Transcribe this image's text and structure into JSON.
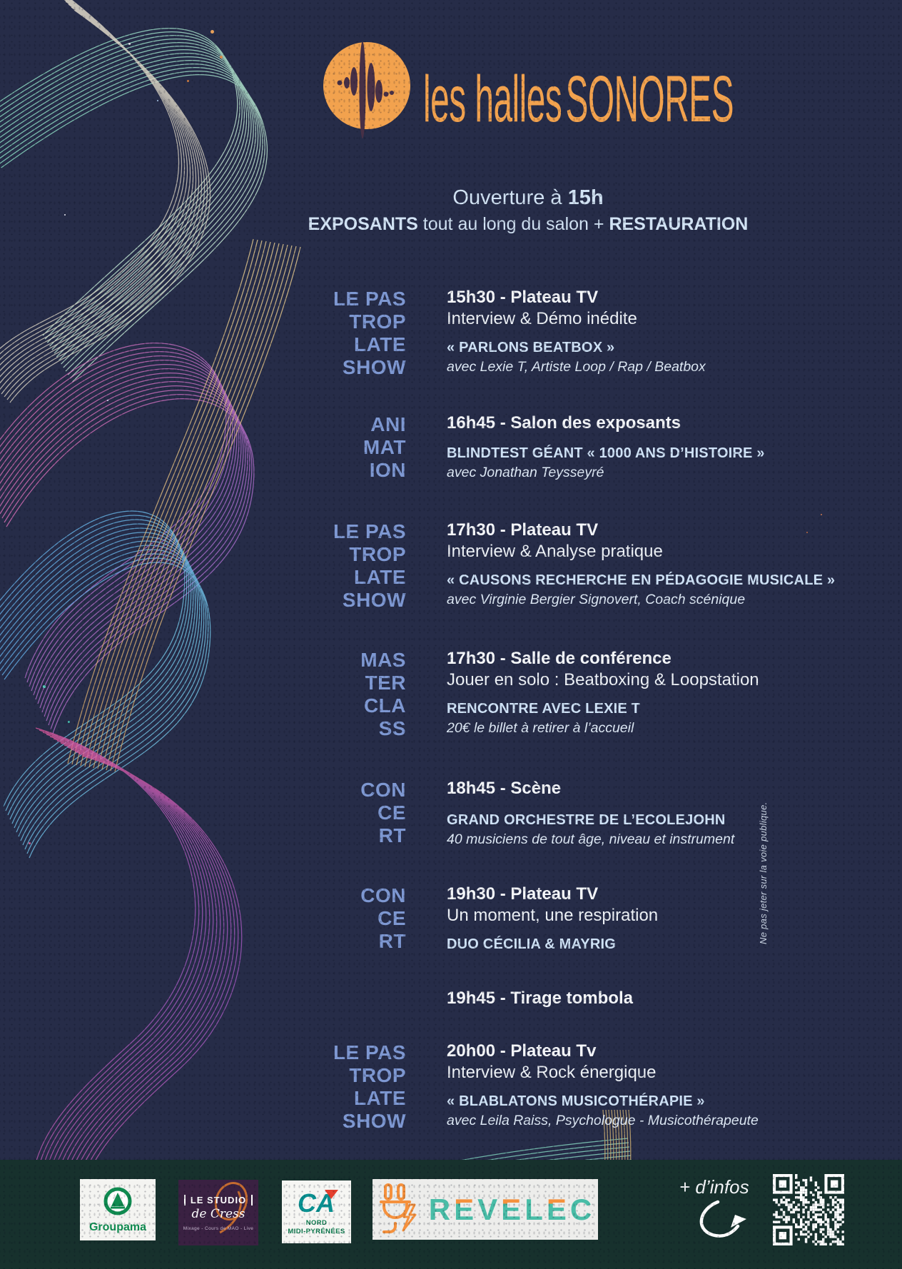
{
  "brand": {
    "icon": "soundwave-circle-icon",
    "name_lower": "les halles",
    "name_upper": "SONORES"
  },
  "header": {
    "opening_prefix": "Ouverture à ",
    "opening_time": "15h",
    "sub_bold1": "EXPOSANTS",
    "sub_mid": " tout au long du salon + ",
    "sub_bold2": "RESTAURATION"
  },
  "schedule": {
    "events": [
      {
        "category": [
          "LE PAS",
          "TROP",
          "LATE",
          "SHOW"
        ],
        "title": "15h30 - Plateau TV",
        "desc": "Interview & Démo inédite",
        "subtitle": "« PARLONS BEATBOX »",
        "credit": "avec Lexie T, Artiste Loop / Rap / Beatbox"
      },
      {
        "category": [
          "ANI",
          "MAT",
          "ION"
        ],
        "title": "16h45 - Salon des exposants",
        "subtitle": "BLINDTEST GÉANT « 1000 ANS D’HISTOIRE »",
        "credit": "avec Jonathan Teysseyré"
      },
      {
        "category": [
          "LE PAS",
          "TROP",
          "LATE",
          "SHOW"
        ],
        "title": "17h30 - Plateau TV",
        "desc": "Interview & Analyse pratique",
        "subtitle": "« CAUSONS RECHERCHE EN PÉDAGOGIE MUSICALE »",
        "credit": "avec Virginie Bergier Signovert, Coach scénique"
      },
      {
        "category": [
          "MAS",
          "TER",
          "CLA",
          "SS"
        ],
        "title": "17h30 - Salle de conférence",
        "desc": "Jouer en solo : Beatboxing & Loopstation",
        "subtitle": "RENCONTRE AVEC LEXIE T",
        "credit": "20€ le billet à retirer à l’accueil"
      },
      {
        "category": [
          "CON",
          "CE",
          "RT"
        ],
        "title": "18h45 - Scène",
        "subtitle": "GRAND ORCHESTRE DE L’ECOLEJOHN",
        "credit": "40 musiciens de tout âge, niveau et instrument"
      },
      {
        "category": [
          "CON",
          "CE",
          "RT"
        ],
        "title": "19h30 - Plateau TV",
        "desc": "Un moment, une respiration",
        "subtitle": "DUO CÉCILIA & MAYRIG"
      },
      {
        "category": [],
        "title": "19h45 - Tirage tombola"
      },
      {
        "category": [
          "LE PAS",
          "TROP",
          "LATE",
          "SHOW"
        ],
        "title": "20h00 - Plateau Tv",
        "desc": "Interview & Rock énergique",
        "subtitle": "« BLABLATONS MUSICOTHÉRAPIE »",
        "credit": "avec Leila Raiss, Psychologue - Musicothérapeute"
      }
    ]
  },
  "side_note": "Ne pas jeter sur la voie publique.",
  "footer": {
    "infos_label": "+ d’infos",
    "qr_icon": "qr-code",
    "sponsors": {
      "groupama": {
        "name": "Groupama"
      },
      "studio_de_cress": {
        "line1": "LE STUDIO",
        "line2": "de Cress",
        "line3": "Mixage - Cours de MAO - Live"
      },
      "credit_agricole": {
        "abbr": "CA",
        "region1": "NORD",
        "region2": "MIDI-PYRÉNÉES"
      },
      "revelec": {
        "letters": [
          "R",
          "E",
          "V",
          "E",
          "L",
          "E",
          "C"
        ]
      }
    }
  },
  "colors": {
    "background": "#262c48",
    "footer_band": "#17312d",
    "accent_orange": "#f2a24e",
    "category_blue": "#7e98d2",
    "highlight_blue": "#cfe2f6",
    "text_white": "#f5f7fa",
    "revelec_teal": "#49bda7",
    "revelec_orange": "#f5913d",
    "groupama_green": "#0f8b50",
    "ca_teal": "#0a9191",
    "ca_red": "#e5402e",
    "studio_purple": "#3a2142"
  }
}
